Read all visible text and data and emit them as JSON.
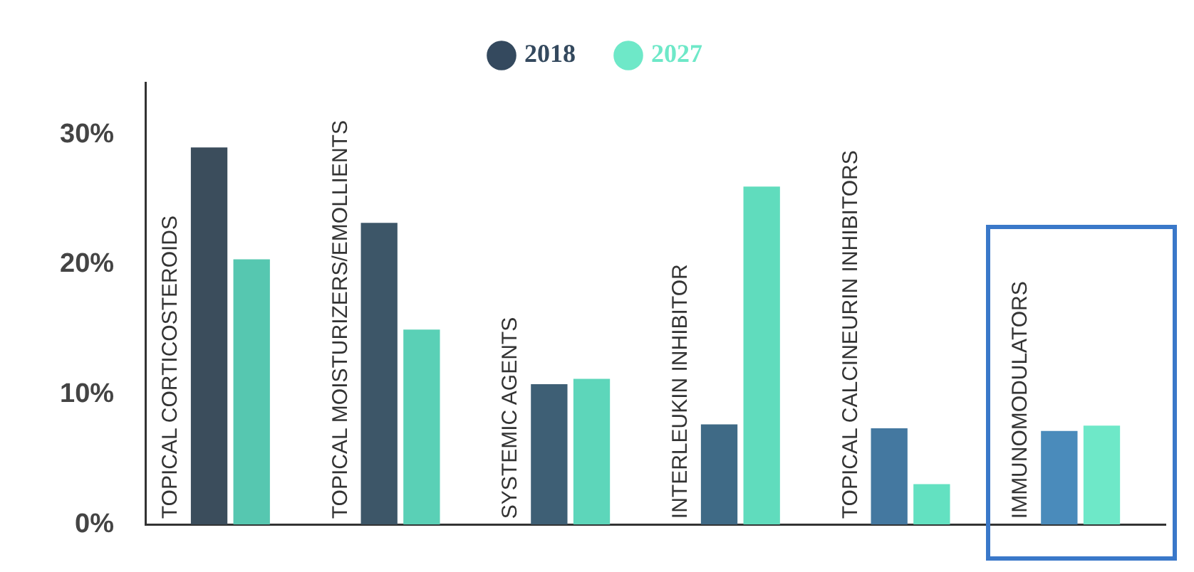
{
  "chart_data": {
    "type": "bar",
    "categories": [
      "TOPICAL CORTICOSTEROIDS",
      "TOPICAL MOISTURIZERS/EMOLLIENTS",
      "SYSTEMIC AGENTS",
      "INTERLEUKIN INHIBITOR",
      "TOPICAL CALCINEURIN INHIBITORS",
      "IMMUNOMODULATORS"
    ],
    "series": [
      {
        "name": "2018",
        "color": "#34495e",
        "colors": [
          "#3b4d5c",
          "#3d5668",
          "#3e5f75",
          "#3f6a86",
          "#4478a0",
          "#4a8bbb"
        ],
        "values": [
          29,
          23.2,
          10.8,
          7.7,
          7.4,
          7.2
        ]
      },
      {
        "name": "2027",
        "color": "#6ee8c8",
        "colors": [
          "#56c7b0",
          "#5ad0b6",
          "#5dd6ba",
          "#60dcbd",
          "#63e1c1",
          "#6ee8c8"
        ],
        "values": [
          20.4,
          15,
          11.2,
          26,
          3.1,
          7.6
        ]
      }
    ],
    "ylim": [
      0,
      34
    ],
    "yticks": [
      {
        "value": 0,
        "label": "0%"
      },
      {
        "value": 10,
        "label": "10%"
      },
      {
        "value": 20,
        "label": "20%"
      },
      {
        "value": 30,
        "label": "30%"
      }
    ],
    "grid": false,
    "legend": "top"
  }
}
